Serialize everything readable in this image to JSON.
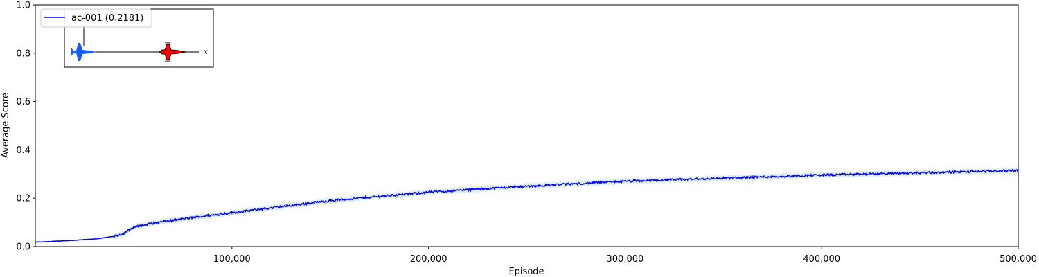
{
  "chart_data": {
    "type": "line",
    "xlabel": "Episode",
    "ylabel": "Average Score",
    "xlim": [
      0,
      500000
    ],
    "ylim": [
      0,
      1
    ],
    "x_ticks": [
      "100,000",
      "200,000",
      "300,000",
      "400,000",
      "500,000"
    ],
    "x_tick_values": [
      100000,
      200000,
      300000,
      400000,
      500000
    ],
    "y_ticks": [
      "0.0",
      "0.2",
      "0.4",
      "0.6",
      "0.8",
      "1.0"
    ],
    "y_tick_values": [
      0,
      0.2,
      0.4,
      0.6,
      0.8,
      1.0
    ],
    "grid": false,
    "legend_position": "top-left",
    "series": [
      {
        "name": "ac-001 (0.2181)",
        "color": "#0000ff",
        "band_color": "#add8e6",
        "x": [
          0,
          10000,
          20000,
          30000,
          40000,
          45000,
          50000,
          60000,
          80000,
          100000,
          150000,
          200000,
          250000,
          300000,
          350000,
          400000,
          450000,
          500000
        ],
        "values": [
          0.018,
          0.022,
          0.026,
          0.031,
          0.042,
          0.055,
          0.08,
          0.097,
          0.12,
          0.14,
          0.19,
          0.225,
          0.25,
          0.27,
          0.283,
          0.296,
          0.305,
          0.315
        ]
      }
    ],
    "inset_icons": [
      "blue-jet-icon",
      "red-jet-icon",
      "target-x-icon"
    ]
  },
  "colors": {
    "line": "#0000ff",
    "band": "#add8e6",
    "blue_jet": "#1a5cff",
    "red_jet": "#ff0000"
  },
  "inset": {
    "target_marker": "x"
  }
}
